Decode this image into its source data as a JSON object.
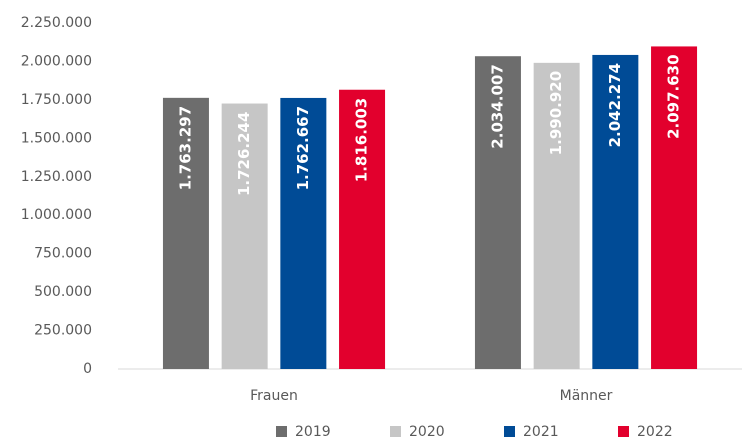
{
  "chart_data": {
    "type": "bar",
    "categories": [
      "Frauen",
      "Männer"
    ],
    "series": [
      {
        "name": "2019",
        "color": "#6d6d6d",
        "values": [
          1763297,
          2034007
        ],
        "value_labels": [
          "1.763.297",
          "2.034.007"
        ]
      },
      {
        "name": "2020",
        "color": "#c6c6c6",
        "values": [
          1726244,
          1990920
        ],
        "value_labels": [
          "1.726.244",
          "1.990.920"
        ]
      },
      {
        "name": "2021",
        "color": "#004b96",
        "values": [
          1762667,
          2042274
        ],
        "value_labels": [
          "1.762.667",
          "2.042.274"
        ]
      },
      {
        "name": "2022",
        "color": "#e2002d",
        "values": [
          1816003,
          2097630
        ],
        "value_labels": [
          "1.816.003",
          "2.097.630"
        ]
      }
    ],
    "ylim": [
      0,
      2250000
    ],
    "yticks": [
      0,
      {
        "value": 250000,
        "label": "250.000"
      },
      {
        "value": 500000,
        "label": "500.000"
      },
      {
        "value": 750000,
        "label": "750.000"
      },
      {
        "value": 1000000,
        "label": "1.000.000"
      },
      {
        "value": 1250000,
        "label": "1.250.000"
      },
      {
        "value": 1500000,
        "label": "1.500.000"
      },
      {
        "value": 1750000,
        "label": "1.750.000"
      },
      {
        "value": 2000000,
        "label": "2.000.000"
      },
      {
        "value": 2250000,
        "label": "2.250.000"
      }
    ],
    "legend": "bottom"
  }
}
